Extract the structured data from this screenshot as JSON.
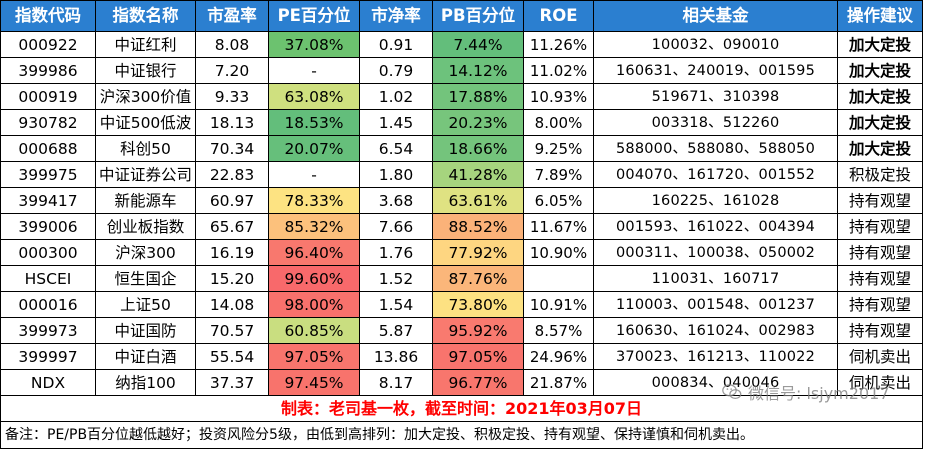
{
  "header": [
    "指数代码",
    "指数名称",
    "市盈率",
    "PE百分位",
    "市净率",
    "PB百分位",
    "ROE",
    "相关基金",
    "操作建议"
  ],
  "rows": [
    {
      "code": "000922",
      "name": "中证红利",
      "pe": "8.08",
      "pe_pct": "37.08%",
      "pe_color": "#6cc26f",
      "pb": "0.91",
      "pb_pct": "7.44%",
      "pb_color": "#63be7b",
      "roe": "11.26%",
      "funds": "100032、090010",
      "action": "加大定投",
      "bold": true
    },
    {
      "code": "399986",
      "name": "中证银行",
      "pe": "7.20",
      "pe_pct": "-",
      "pe_color": "",
      "pb": "0.79",
      "pb_pct": "14.12%",
      "pb_color": "#6dc27c",
      "roe": "11.02%",
      "funds": "160631、240019、001595",
      "action": "加大定投",
      "bold": true
    },
    {
      "code": "000919",
      "name": "沪深300价值",
      "pe": "9.33",
      "pe_pct": "63.08%",
      "pe_color": "#cfe07f",
      "pb": "1.02",
      "pb_pct": "17.88%",
      "pb_color": "#73c47c",
      "roe": "10.93%",
      "funds": "519671、310398",
      "action": "加大定投",
      "bold": true
    },
    {
      "code": "930782",
      "name": "中证500低波",
      "pe": "18.13",
      "pe_pct": "18.53%",
      "pe_color": "#63be7b",
      "pb": "1.45",
      "pb_pct": "20.23%",
      "pb_color": "#77c57c",
      "roe": "8.00%",
      "funds": "003318、512260",
      "action": "加大定投",
      "bold": true
    },
    {
      "code": "000688",
      "name": "科创50",
      "pe": "70.34",
      "pe_pct": "20.07%",
      "pe_color": "#66bf7b",
      "pb": "6.54",
      "pb_pct": "18.66%",
      "pb_color": "#74c47c",
      "roe": "9.25%",
      "funds": "588000、588080、588050",
      "action": "加大定投",
      "bold": true
    },
    {
      "code": "399975",
      "name": "中证证券公司",
      "pe": "22.83",
      "pe_pct": "-",
      "pe_color": "",
      "pb": "1.80",
      "pb_pct": "41.28%",
      "pb_color": "#a6d47e",
      "roe": "7.89%",
      "funds": "004070、161720、001552",
      "action": "积极定投",
      "bold": false
    },
    {
      "code": "399417",
      "name": "新能源车",
      "pe": "60.97",
      "pe_pct": "78.33%",
      "pe_color": "#fde382",
      "pb": "3.68",
      "pb_pct": "63.61%",
      "pb_color": "#dfe282",
      "roe": "6.05%",
      "funds": "160225、161028",
      "action": "持有观望",
      "bold": false
    },
    {
      "code": "399006",
      "name": "创业板指数",
      "pe": "65.67",
      "pe_pct": "85.32%",
      "pe_color": "#fcc17c",
      "pb": "7.66",
      "pb_pct": "88.52%",
      "pb_color": "#fbb279",
      "roe": "11.67%",
      "funds": "001593、161022、004394",
      "action": "持有观望",
      "bold": false
    },
    {
      "code": "000300",
      "name": "沪深300",
      "pe": "16.19",
      "pe_pct": "96.40%",
      "pe_color": "#f8786e",
      "pb": "1.76",
      "pb_pct": "77.92%",
      "pb_color": "#fed681",
      "roe": "10.90%",
      "funds": "000311、100038、050002",
      "action": "持有观望",
      "bold": false
    },
    {
      "code": "HSCEI",
      "name": "恒生国企",
      "pe": "15.20",
      "pe_pct": "99.60%",
      "pe_color": "#f8696b",
      "pb": "1.52",
      "pb_pct": "87.76%",
      "pb_color": "#fbb67a",
      "roe": "",
      "funds": "110031、160717",
      "action": "持有观望",
      "bold": false
    },
    {
      "code": "000016",
      "name": "上证50",
      "pe": "14.08",
      "pe_pct": "98.00%",
      "pe_color": "#f8716c",
      "pb": "1.54",
      "pb_pct": "73.80%",
      "pb_color": "#fde182",
      "roe": "10.91%",
      "funds": "110003、001548、001237",
      "action": "持有观望",
      "bold": false
    },
    {
      "code": "399973",
      "name": "中证国防",
      "pe": "70.57",
      "pe_pct": "60.85%",
      "pe_color": "#c9de80",
      "pb": "5.87",
      "pb_pct": "95.92%",
      "pb_color": "#f97a6f",
      "roe": "8.57%",
      "funds": "160630、161024、002983",
      "action": "持有观望",
      "bold": false
    },
    {
      "code": "399997",
      "name": "中证白酒",
      "pe": "55.54",
      "pe_pct": "97.05%",
      "pe_color": "#f8756d",
      "pb": "13.86",
      "pb_pct": "97.05%",
      "pb_color": "#f8746d",
      "roe": "24.96%",
      "funds": "370023、161213、110022",
      "action": "伺机卖出",
      "bold": false
    },
    {
      "code": "NDX",
      "name": "纳指100",
      "pe": "37.37",
      "pe_pct": "97.45%",
      "pe_color": "#f8736c",
      "pb": "8.17",
      "pb_pct": "96.77%",
      "pb_color": "#f8766d",
      "roe": "21.87%",
      "funds": "000834、040046",
      "action": "伺机卖出",
      "bold": false
    }
  ],
  "footer": "制表：老司基一枚，截至时间：2021年03月07日",
  "note": "备注：PE/PB百分位越低越好；投资风险分5级，由低到高排列：加大定投、积极定投、持有观望、保持谨慎和伺机卖出。",
  "watermark": {
    "text": "微信号: lsjym2017",
    "icon": "wechat-icon"
  },
  "colors": {
    "header_bg": "#2b7fd0",
    "footer_text": "#ff0000"
  }
}
